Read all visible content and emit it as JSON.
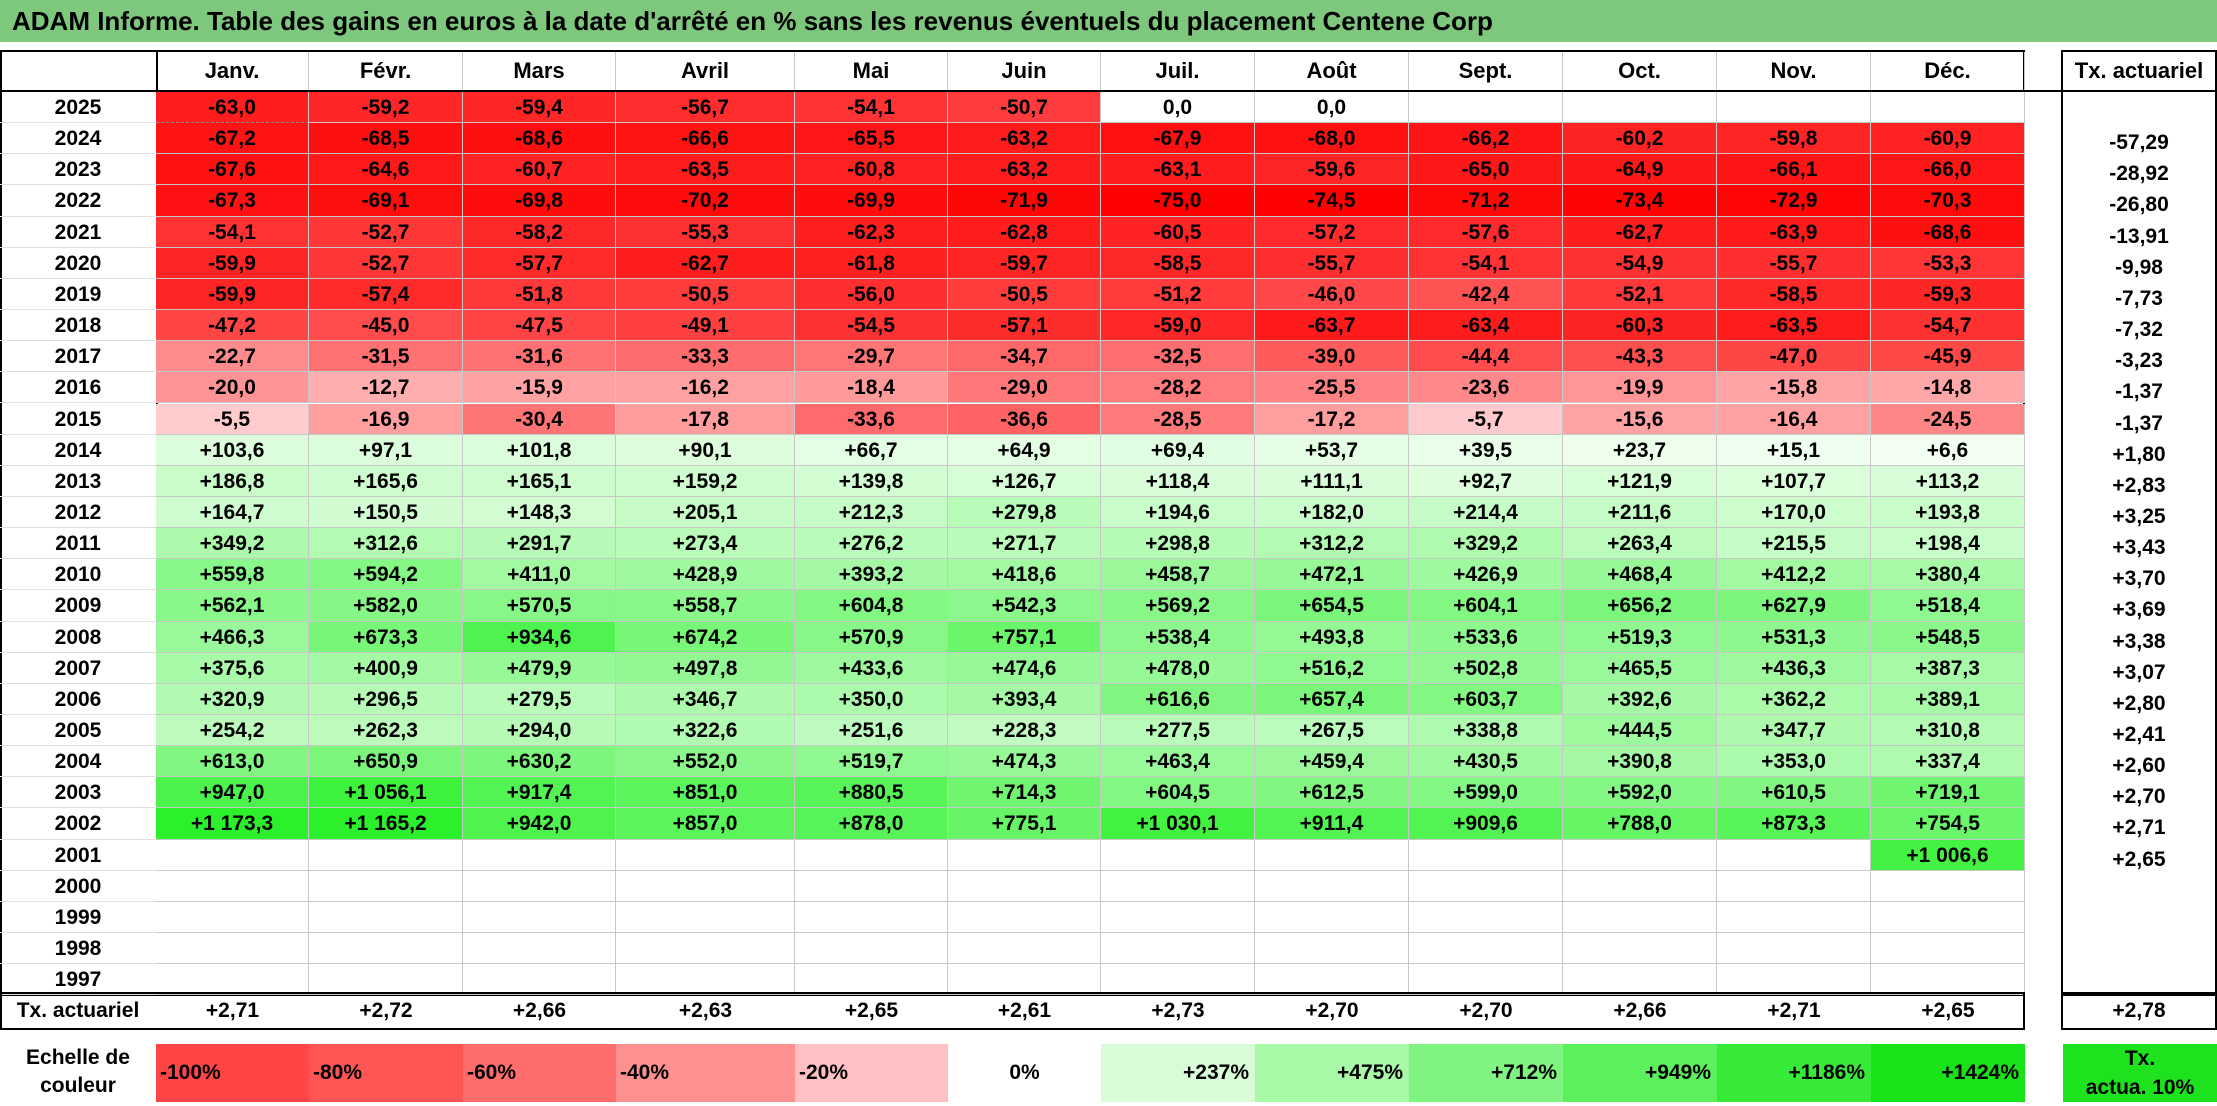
{
  "title": "ADAM Informe. Table des gains en euros à la date d'arrêté en % sans les revenus éventuels du placement Centene Corp",
  "months": [
    "Janv.",
    "Févr.",
    "Mars",
    "Avril",
    "Mai",
    "Juin",
    "Juil.",
    "Août",
    "Sept.",
    "Oct.",
    "Nov.",
    "Déc."
  ],
  "rate_header": "Tx. actuariel",
  "footer_label": "Tx. actuariel",
  "footer_rates": [
    "+2,71",
    "+2,72",
    "+2,66",
    "+2,63",
    "+2,65",
    "+2,61",
    "+2,73",
    "+2,70",
    "+2,70",
    "+2,66",
    "+2,71",
    "+2,65"
  ],
  "footer_total": "+2,78",
  "legend": {
    "label_line1": "Echelle de",
    "label_line2": "couleur",
    "steps": [
      {
        "text": "-100%",
        "color": "#ff4545"
      },
      {
        "text": "-80%",
        "color": "#ff5555"
      },
      {
        "text": "-60%",
        "color": "#ff6c6c"
      },
      {
        "text": "-40%",
        "color": "#ff9090"
      },
      {
        "text": "-20%",
        "color": "#ffc0c4"
      },
      {
        "text": "0%",
        "color": "#ffffff"
      },
      {
        "text": "+237%",
        "color": "#d8fcd8"
      },
      {
        "text": "+475%",
        "color": "#a8f8a8"
      },
      {
        "text": "+712%",
        "color": "#80f480"
      },
      {
        "text": "+949%",
        "color": "#5cf05c"
      },
      {
        "text": "+1186%",
        "color": "#38ea38"
      },
      {
        "text": "+1424%",
        "color": "#18e218"
      }
    ],
    "extra_line1": "Tx.",
    "extra_line2": "actua. 10%",
    "extra_color": "#1ee21e"
  },
  "chart_data": {
    "type": "heatmap",
    "title": "ADAM Informe. Table des gains en euros à la date d'arrêté en % sans les revenus éventuels du placement Centene Corp",
    "x": [
      "Janv.",
      "Févr.",
      "Mars",
      "Avril",
      "Mai",
      "Juin",
      "Juil.",
      "Août",
      "Sept.",
      "Oct.",
      "Nov.",
      "Déc."
    ],
    "rows": [
      {
        "year": "2025",
        "values": [
          "-63,0",
          "-59,2",
          "-59,4",
          "-56,7",
          "-54,1",
          "-50,7",
          "0,0",
          "0,0",
          "",
          "",
          "",
          ""
        ],
        "rate": ""
      },
      {
        "year": "2024",
        "values": [
          "-67,2",
          "-68,5",
          "-68,6",
          "-66,6",
          "-65,5",
          "-63,2",
          "-67,9",
          "-68,0",
          "-66,2",
          "-60,2",
          "-59,8",
          "-60,9"
        ],
        "rate": "-57,29"
      },
      {
        "year": "2023",
        "values": [
          "-67,6",
          "-64,6",
          "-60,7",
          "-63,5",
          "-60,8",
          "-63,2",
          "-63,1",
          "-59,6",
          "-65,0",
          "-64,9",
          "-66,1",
          "-66,0"
        ],
        "rate": "-28,92"
      },
      {
        "year": "2022",
        "values": [
          "-67,3",
          "-69,1",
          "-69,8",
          "-70,2",
          "-69,9",
          "-71,9",
          "-75,0",
          "-74,5",
          "-71,2",
          "-73,4",
          "-72,9",
          "-70,3"
        ],
        "rate": "-26,80"
      },
      {
        "year": "2021",
        "values": [
          "-54,1",
          "-52,7",
          "-58,2",
          "-55,3",
          "-62,3",
          "-62,8",
          "-60,5",
          "-57,2",
          "-57,6",
          "-62,7",
          "-63,9",
          "-68,6"
        ],
        "rate": "-13,91"
      },
      {
        "year": "2020",
        "values": [
          "-59,9",
          "-52,7",
          "-57,7",
          "-62,7",
          "-61,8",
          "-59,7",
          "-58,5",
          "-55,7",
          "-54,1",
          "-54,9",
          "-55,7",
          "-53,3"
        ],
        "rate": "-9,98"
      },
      {
        "year": "2019",
        "values": [
          "-59,9",
          "-57,4",
          "-51,8",
          "-50,5",
          "-56,0",
          "-50,5",
          "-51,2",
          "-46,0",
          "-42,4",
          "-52,1",
          "-58,5",
          "-59,3"
        ],
        "rate": "-7,73"
      },
      {
        "year": "2018",
        "values": [
          "-47,2",
          "-45,0",
          "-47,5",
          "-49,1",
          "-54,5",
          "-57,1",
          "-59,0",
          "-63,7",
          "-63,4",
          "-60,3",
          "-63,5",
          "-54,7"
        ],
        "rate": "-7,32"
      },
      {
        "year": "2017",
        "values": [
          "-22,7",
          "-31,5",
          "-31,6",
          "-33,3",
          "-29,7",
          "-34,7",
          "-32,5",
          "-39,0",
          "-44,4",
          "-43,3",
          "-47,0",
          "-45,9"
        ],
        "rate": "-3,23"
      },
      {
        "year": "2016",
        "values": [
          "-20,0",
          "-12,7",
          "-15,9",
          "-16,2",
          "-18,4",
          "-29,0",
          "-28,2",
          "-25,5",
          "-23,6",
          "-19,9",
          "-15,8",
          "-14,8"
        ],
        "rate": "-1,37"
      },
      {
        "year": "2015",
        "values": [
          "-5,5",
          "-16,9",
          "-30,4",
          "-17,8",
          "-33,6",
          "-36,6",
          "-28,5",
          "-17,2",
          "-5,7",
          "-15,6",
          "-16,4",
          "-24,5"
        ],
        "rate": "-1,37"
      },
      {
        "year": "2014",
        "values": [
          "+103,6",
          "+97,1",
          "+101,8",
          "+90,1",
          "+66,7",
          "+64,9",
          "+69,4",
          "+53,7",
          "+39,5",
          "+23,7",
          "+15,1",
          "+6,6"
        ],
        "rate": "+1,80"
      },
      {
        "year": "2013",
        "values": [
          "+186,8",
          "+165,6",
          "+165,1",
          "+159,2",
          "+139,8",
          "+126,7",
          "+118,4",
          "+111,1",
          "+92,7",
          "+121,9",
          "+107,7",
          "+113,2"
        ],
        "rate": "+2,83"
      },
      {
        "year": "2012",
        "values": [
          "+164,7",
          "+150,5",
          "+148,3",
          "+205,1",
          "+212,3",
          "+279,8",
          "+194,6",
          "+182,0",
          "+214,4",
          "+211,6",
          "+170,0",
          "+193,8"
        ],
        "rate": "+3,25"
      },
      {
        "year": "2011",
        "values": [
          "+349,2",
          "+312,6",
          "+291,7",
          "+273,4",
          "+276,2",
          "+271,7",
          "+298,8",
          "+312,2",
          "+329,2",
          "+263,4",
          "+215,5",
          "+198,4"
        ],
        "rate": "+3,43"
      },
      {
        "year": "2010",
        "values": [
          "+559,8",
          "+594,2",
          "+411,0",
          "+428,9",
          "+393,2",
          "+418,6",
          "+458,7",
          "+472,1",
          "+426,9",
          "+468,4",
          "+412,2",
          "+380,4"
        ],
        "rate": "+3,70"
      },
      {
        "year": "2009",
        "values": [
          "+562,1",
          "+582,0",
          "+570,5",
          "+558,7",
          "+604,8",
          "+542,3",
          "+569,2",
          "+654,5",
          "+604,1",
          "+656,2",
          "+627,9",
          "+518,4"
        ],
        "rate": "+3,69"
      },
      {
        "year": "2008",
        "values": [
          "+466,3",
          "+673,3",
          "+934,6",
          "+674,2",
          "+570,9",
          "+757,1",
          "+538,4",
          "+493,8",
          "+533,6",
          "+519,3",
          "+531,3",
          "+548,5"
        ],
        "rate": "+3,38"
      },
      {
        "year": "2007",
        "values": [
          "+375,6",
          "+400,9",
          "+479,9",
          "+497,8",
          "+433,6",
          "+474,6",
          "+478,0",
          "+516,2",
          "+502,8",
          "+465,5",
          "+436,3",
          "+387,3"
        ],
        "rate": "+3,07"
      },
      {
        "year": "2006",
        "values": [
          "+320,9",
          "+296,5",
          "+279,5",
          "+346,7",
          "+350,0",
          "+393,4",
          "+616,6",
          "+657,4",
          "+603,7",
          "+392,6",
          "+362,2",
          "+389,1"
        ],
        "rate": "+2,80"
      },
      {
        "year": "2005",
        "values": [
          "+254,2",
          "+262,3",
          "+294,0",
          "+322,6",
          "+251,6",
          "+228,3",
          "+277,5",
          "+267,5",
          "+338,8",
          "+444,5",
          "+347,7",
          "+310,8"
        ],
        "rate": "+2,41"
      },
      {
        "year": "2004",
        "values": [
          "+613,0",
          "+650,9",
          "+630,2",
          "+552,0",
          "+519,7",
          "+474,3",
          "+463,4",
          "+459,4",
          "+430,5",
          "+390,8",
          "+353,0",
          "+337,4"
        ],
        "rate": "+2,60"
      },
      {
        "year": "2003",
        "values": [
          "+947,0",
          "+1 056,1",
          "+917,4",
          "+851,0",
          "+880,5",
          "+714,3",
          "+604,5",
          "+612,5",
          "+599,0",
          "+592,0",
          "+610,5",
          "+719,1"
        ],
        "rate": "+2,70"
      },
      {
        "year": "2002",
        "values": [
          "+1 173,3",
          "+1 165,2",
          "+942,0",
          "+857,0",
          "+878,0",
          "+775,1",
          "+1 030,1",
          "+911,4",
          "+909,6",
          "+788,0",
          "+873,3",
          "+754,5"
        ],
        "rate": "+2,71"
      },
      {
        "year": "2001",
        "values": [
          "",
          "",
          "",
          "",
          "",
          "",
          "",
          "",
          "",
          "",
          "",
          "+1 006,6"
        ],
        "rate": "+2,65"
      },
      {
        "year": "2000",
        "values": [
          "",
          "",
          "",
          "",
          "",
          "",
          "",
          "",
          "",
          "",
          "",
          ""
        ],
        "rate": ""
      },
      {
        "year": "1999",
        "values": [
          "",
          "",
          "",
          "",
          "",
          "",
          "",
          "",
          "",
          "",
          "",
          ""
        ],
        "rate": ""
      },
      {
        "year": "1998",
        "values": [
          "",
          "",
          "",
          "",
          "",
          "",
          "",
          "",
          "",
          "",
          "",
          ""
        ],
        "rate": ""
      },
      {
        "year": "1997",
        "values": [
          "",
          "",
          "",
          "",
          "",
          "",
          "",
          "",
          "",
          "",
          "",
          ""
        ],
        "rate": ""
      }
    ]
  }
}
